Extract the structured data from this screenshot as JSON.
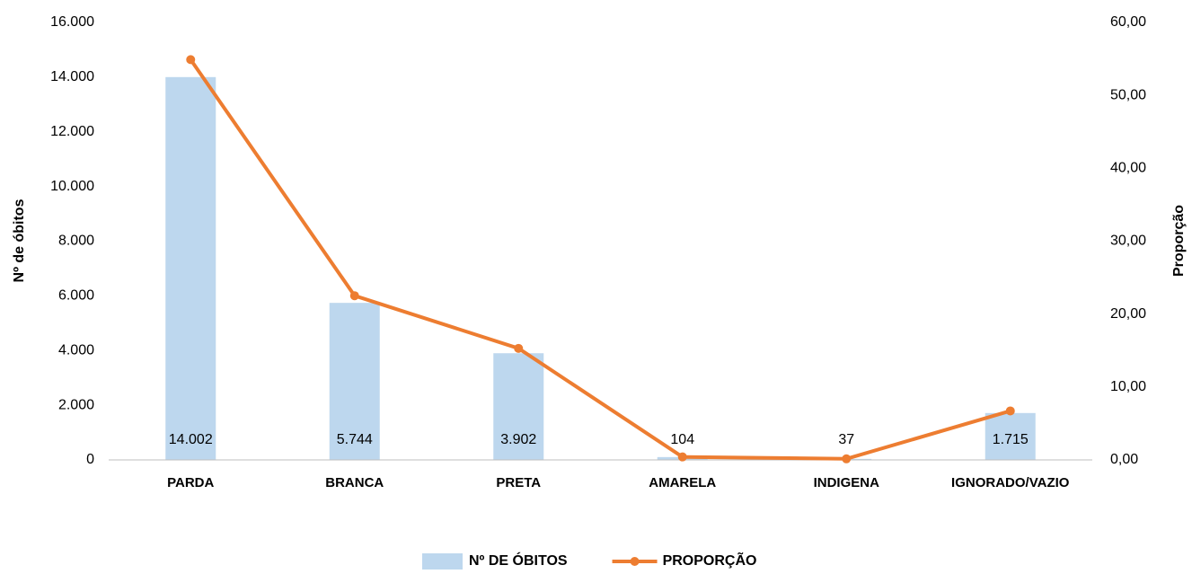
{
  "chart_data": {
    "type": "bar_line",
    "categories": [
      "PARDA",
      "BRANCA",
      "PRETA",
      "AMARELA",
      "INDIGENA",
      "IGNORADO/VAZIO"
    ],
    "series": [
      {
        "name": "Nº DE ÓBITOS",
        "type": "bar",
        "color": "#bdd7ee",
        "values": [
          14002,
          5744,
          3902,
          104,
          37,
          1715
        ],
        "value_labels": [
          "14.002",
          "5.744",
          "3.902",
          "104",
          "37",
          "1.715"
        ]
      },
      {
        "name": "PROPORÇÃO",
        "type": "line",
        "axis": "y2",
        "color": "#ed7d31",
        "values": [
          54.9,
          22.52,
          15.3,
          0.41,
          0.15,
          6.72
        ]
      }
    ],
    "y_label": "Nº de óbitos",
    "y2_label": "Proporção",
    "ylim": [
      0,
      16000
    ],
    "yticks": [
      0,
      {
        "value": 2000,
        "label": "2.000"
      },
      {
        "value": 4000,
        "label": "4.000"
      },
      {
        "value": 6000,
        "label": "6.000"
      },
      {
        "value": 8000,
        "label": "8.000"
      },
      {
        "value": 10000,
        "label": "10.000"
      },
      {
        "value": 12000,
        "label": "12.000"
      },
      {
        "value": 14000,
        "label": "14.000"
      },
      {
        "value": 16000,
        "label": "16.000"
      }
    ],
    "y2lim": [
      0,
      60
    ],
    "y2ticks": [
      {
        "value": 0,
        "label": "0,00"
      },
      {
        "value": 10,
        "label": "10,00"
      },
      {
        "value": 20,
        "label": "20,00"
      },
      {
        "value": 30,
        "label": "30,00"
      },
      {
        "value": 40,
        "label": "40,00"
      },
      {
        "value": 50,
        "label": "50,00"
      },
      {
        "value": 60,
        "label": "60,00"
      }
    ],
    "grid": false,
    "legend": "bottom"
  }
}
